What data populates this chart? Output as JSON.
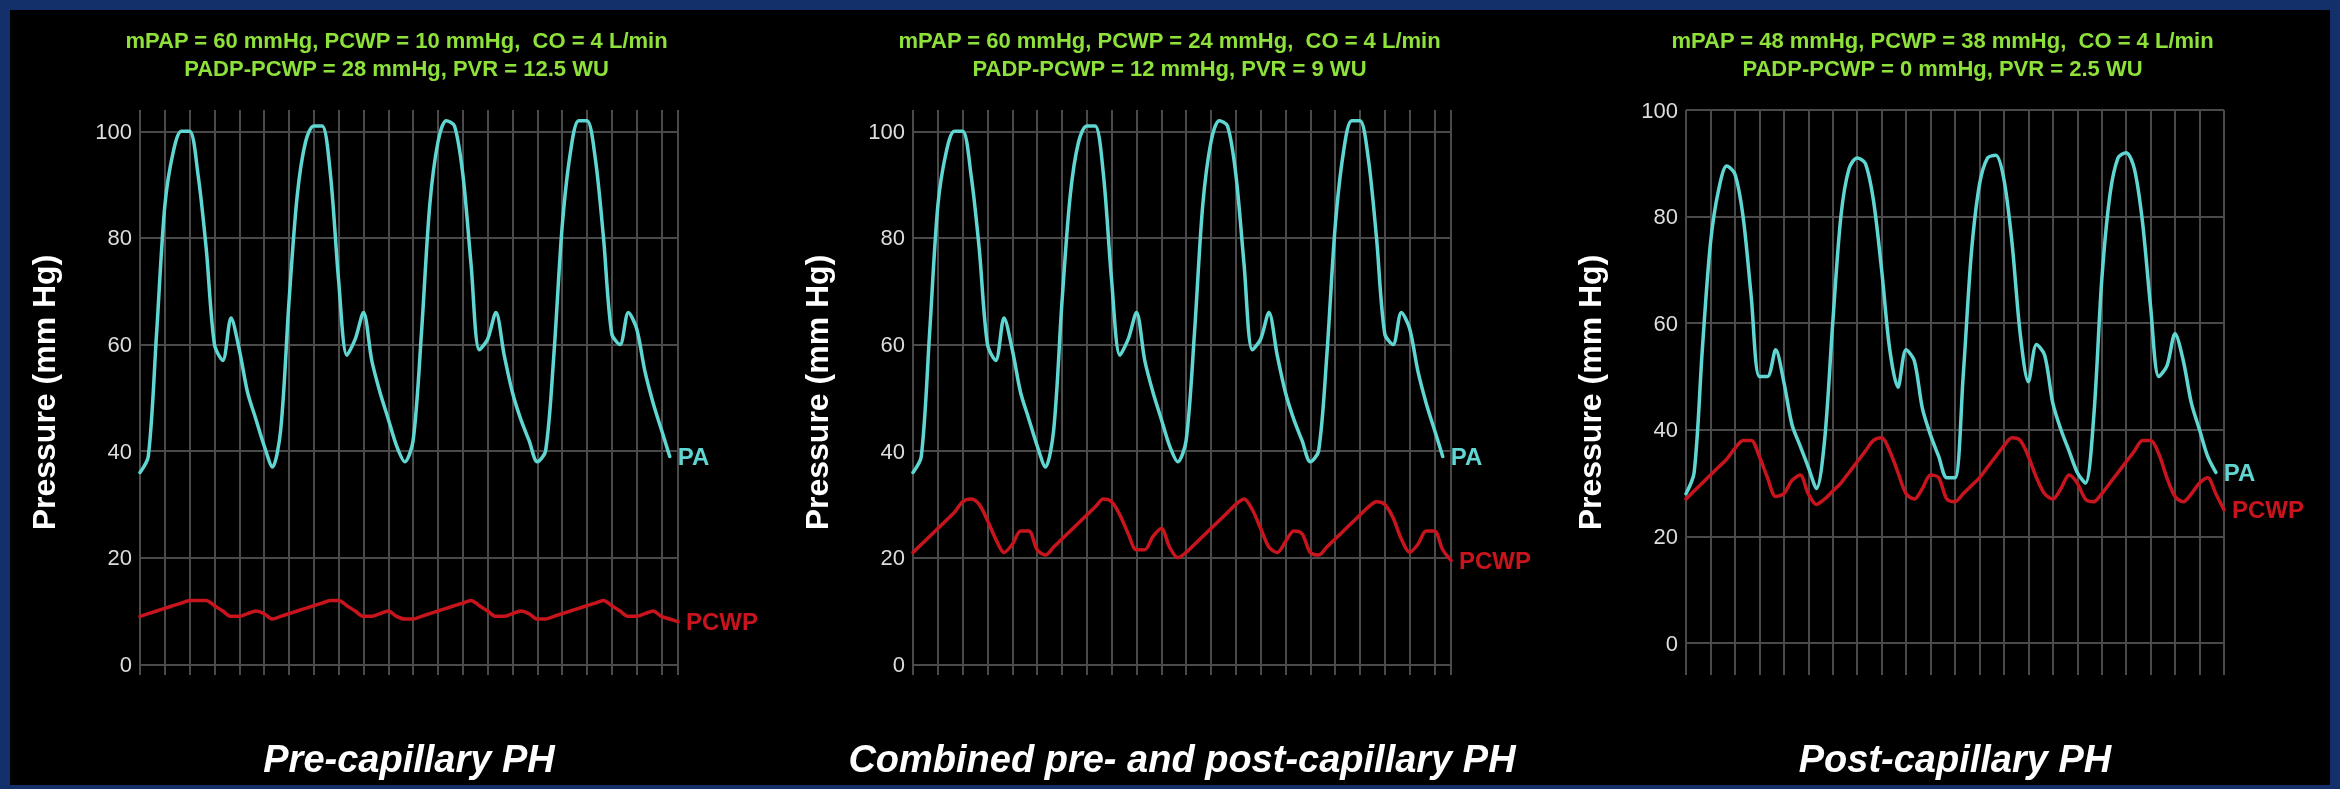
{
  "chart_data": [
    {
      "type": "line",
      "title": "mPAP = 60 mmHg, PCWP = 10 mmHg,  CO = 4 L/min",
      "subtitle": "PADP-PCWP = 28 mmHg, PVR = 12.5 WU",
      "xlabel": "Pre-capillary PH",
      "ylabel": "Pressure (mm Hg)",
      "categories": [
        null,
        null,
        null,
        null,
        null,
        null,
        null,
        null,
        null,
        null,
        null,
        null,
        null,
        null,
        null,
        null,
        null,
        null,
        null,
        null,
        null,
        null,
        null,
        null,
        null,
        null,
        null,
        null,
        null,
        null,
        null,
        null,
        null,
        null,
        null,
        null,
        null,
        null,
        null,
        null,
        null,
        null,
        null,
        null,
        null,
        null,
        null,
        null,
        null,
        null,
        null,
        null,
        null,
        null,
        null,
        null,
        null,
        null,
        null,
        null,
        null,
        null,
        null,
        null,
        null,
        null
      ],
      "series": [
        {
          "name": "PA",
          "color": "#5fd6d2",
          "values": [
            36,
            39,
            62,
            86,
            96,
            100,
            100,
            92,
            78,
            60,
            57,
            65,
            59,
            51,
            46,
            41,
            37,
            44,
            68,
            88,
            98,
            101,
            101,
            92,
            72,
            58,
            61,
            66,
            57,
            51,
            46,
            41,
            38,
            42,
            62,
            86,
            98,
            102,
            101,
            92,
            75,
            59,
            61,
            66,
            58,
            51,
            46,
            42,
            38,
            40,
            58,
            82,
            96,
            102,
            102,
            95,
            80,
            62,
            60,
            66,
            63,
            55,
            49,
            44,
            39,
            null
          ]
        },
        {
          "name": "PCWP",
          "color": "#c8141c",
          "values": [
            9,
            9.5,
            10,
            10.5,
            11,
            11.5,
            12,
            12,
            12,
            11,
            10,
            9,
            9,
            9.5,
            10,
            9.5,
            8.5,
            9,
            9.5,
            10,
            10.5,
            11,
            11.5,
            12,
            12,
            11,
            10,
            9,
            9,
            9.5,
            10,
            9,
            8.5,
            8.5,
            9,
            9.5,
            10,
            10.5,
            11,
            11.5,
            12,
            11,
            10,
            9,
            9,
            9.5,
            10,
            9.5,
            8.5,
            8.5,
            9,
            9.5,
            10,
            10.5,
            11,
            11.5,
            12,
            11,
            10,
            9,
            9,
            9.5,
            10,
            9,
            8.5,
            8
          ]
        }
      ],
      "ylim": [
        -2,
        104
      ],
      "yticks": [
        0,
        20,
        40,
        60,
        80,
        100
      ],
      "grid": true,
      "tick_labels": "y"
    },
    {
      "type": "line",
      "title": "mPAP = 60 mmHg, PCWP = 24 mmHg,  CO = 4 L/min",
      "subtitle": "PADP-PCWP = 12 mmHg, PVR = 9 WU",
      "xlabel": "Combined pre- and post-capillary PH",
      "ylabel": "Pressure (mm Hg)",
      "categories": [
        null,
        null,
        null,
        null,
        null,
        null,
        null,
        null,
        null,
        null,
        null,
        null,
        null,
        null,
        null,
        null,
        null,
        null,
        null,
        null,
        null,
        null,
        null,
        null,
        null,
        null,
        null,
        null,
        null,
        null,
        null,
        null,
        null,
        null,
        null,
        null,
        null,
        null,
        null,
        null,
        null,
        null,
        null,
        null,
        null,
        null,
        null,
        null,
        null,
        null,
        null,
        null,
        null,
        null,
        null,
        null,
        null,
        null,
        null,
        null,
        null,
        null,
        null,
        null,
        null,
        null
      ],
      "series": [
        {
          "name": "PA",
          "color": "#5fd6d2",
          "values": [
            36,
            39,
            62,
            86,
            96,
            100,
            100,
            92,
            78,
            60,
            57,
            65,
            59,
            51,
            46,
            41,
            37,
            44,
            68,
            88,
            98,
            101,
            101,
            92,
            72,
            58,
            61,
            66,
            57,
            51,
            46,
            41,
            38,
            42,
            62,
            86,
            98,
            102,
            101,
            92,
            75,
            59,
            61,
            66,
            58,
            51,
            46,
            42,
            38,
            40,
            58,
            82,
            96,
            102,
            102,
            95,
            80,
            62,
            60,
            66,
            63,
            55,
            49,
            44,
            39,
            null
          ]
        },
        {
          "name": "PCWP",
          "color": "#c8141c",
          "values": [
            21,
            22.5,
            24,
            25.5,
            27,
            28.5,
            30.5,
            31,
            30,
            27,
            23.5,
            21,
            22.5,
            25,
            25,
            21.5,
            20.5,
            22,
            23.5,
            25,
            26.5,
            28,
            29.5,
            31,
            30.5,
            28,
            24.5,
            21.5,
            21.5,
            24,
            25.5,
            22,
            20,
            21,
            22.5,
            24,
            25.5,
            27,
            28.5,
            30,
            31,
            29,
            25.5,
            22,
            21,
            23,
            25,
            24.5,
            21,
            20.5,
            22,
            23.5,
            25,
            26.5,
            28,
            29.5,
            30.5,
            30,
            27.5,
            23.5,
            21,
            22.5,
            25,
            25,
            21.5,
            19.5
          ]
        }
      ],
      "ylim": [
        -2,
        104
      ],
      "yticks": [
        0,
        20,
        40,
        60,
        80,
        100
      ],
      "grid": true,
      "tick_labels": "y"
    },
    {
      "type": "line",
      "title": "mPAP = 48 mmHg, PCWP = 38 mmHg,  CO = 4 L/min",
      "subtitle": "PADP-PCWP = 0 mmHg, PVR = 2.5 WU",
      "xlabel": "Post-capillary PH",
      "ylabel": "Pressure (mm Hg)",
      "categories": [
        null,
        null,
        null,
        null,
        null,
        null,
        null,
        null,
        null,
        null,
        null,
        null,
        null,
        null,
        null,
        null,
        null,
        null,
        null,
        null,
        null,
        null,
        null,
        null,
        null,
        null,
        null,
        null,
        null,
        null,
        null,
        null,
        null,
        null,
        null,
        null,
        null,
        null,
        null,
        null,
        null,
        null,
        null,
        null,
        null,
        null,
        null,
        null,
        null,
        null,
        null,
        null,
        null,
        null,
        null,
        null,
        null,
        null,
        null,
        null,
        null,
        null,
        null,
        null,
        null,
        null,
        null
      ],
      "series": [
        {
          "name": "PA",
          "color": "#5fd6d2",
          "values": [
            28,
            32,
            55,
            75,
            85,
            89.5,
            88,
            80,
            65,
            50,
            50,
            55,
            49,
            41,
            37,
            33,
            29,
            38,
            60,
            80,
            89,
            91,
            90,
            83,
            70,
            55,
            48,
            55,
            53,
            44,
            39,
            35,
            31,
            31,
            50,
            73,
            86,
            91,
            91.5,
            87,
            75,
            58,
            49,
            56,
            54,
            45,
            40,
            36,
            32,
            30,
            42,
            68,
            84,
            91,
            92,
            89,
            79,
            63,
            50,
            52,
            58,
            53,
            45,
            40,
            35,
            32,
            null
          ]
        },
        {
          "name": "PCWP",
          "color": "#c8141c",
          "values": [
            27,
            28.5,
            30,
            31.5,
            33,
            34.5,
            36.5,
            38,
            38,
            35,
            31,
            27.5,
            28,
            30.5,
            31.5,
            28,
            26,
            27,
            28.5,
            30,
            32,
            34,
            36,
            38,
            38.5,
            36,
            32,
            28,
            27,
            29,
            31.5,
            31,
            27,
            26.5,
            28,
            29.5,
            31,
            33,
            35,
            37,
            38.5,
            38,
            35,
            31,
            28,
            27,
            29,
            31.5,
            30,
            27,
            26.5,
            28,
            30,
            32,
            34,
            36,
            38,
            38,
            35.5,
            31,
            27.5,
            26.5,
            28,
            30,
            31,
            28,
            25
          ]
        }
      ],
      "ylim": [
        -6,
        100
      ],
      "yticks": [
        0,
        20,
        40,
        60,
        80,
        100
      ],
      "grid": true,
      "tick_labels": "y"
    }
  ]
}
